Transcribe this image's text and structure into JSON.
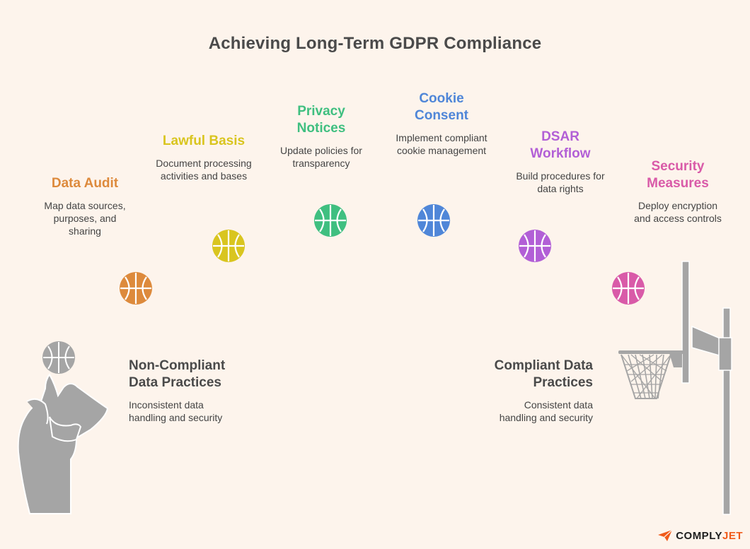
{
  "title": "Achieving Long-Term GDPR Compliance",
  "steps": [
    {
      "title": "Data Audit",
      "desc": "Map data sources, purposes, and sharing",
      "color": "#dd8a3c"
    },
    {
      "title": "Lawful Basis",
      "desc": "Document processing activities and bases",
      "color": "#d9c51f"
    },
    {
      "title": "Privacy Notices",
      "desc": "Update policies for transparency",
      "color": "#3fbf80"
    },
    {
      "title": "Cookie Consent",
      "desc": "Implement compliant cookie management",
      "color": "#4f86d8"
    },
    {
      "title": "DSAR Workflow",
      "desc": "Build procedures for data rights",
      "color": "#b25fd6"
    },
    {
      "title": "Security Measures",
      "desc": "Deploy encryption and access controls",
      "color": "#d95aa8"
    }
  ],
  "left": {
    "title": "Non-Compliant Data Practices",
    "desc": "Inconsistent data handling and security"
  },
  "right": {
    "title": "Compliant Data Practices",
    "desc": "Consistent data handling and security"
  },
  "brand": {
    "prefix": "COMPLY",
    "accent": "JET"
  }
}
